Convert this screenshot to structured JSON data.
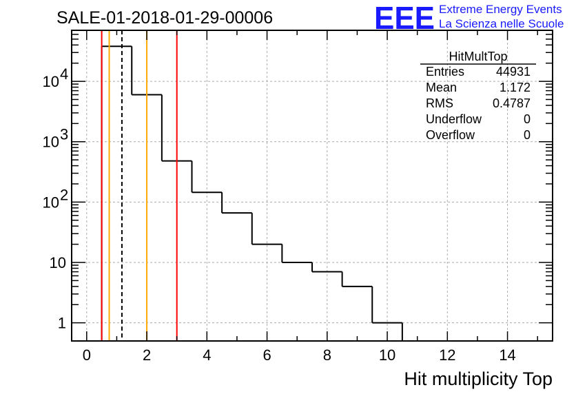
{
  "chart_data": {
    "type": "bar",
    "title": "SALE-01-2018-01-29-00006",
    "xlabel": "Hit multiplicity Top",
    "ylabel": "",
    "yscale": "log",
    "xlim": [
      -0.5,
      15.5
    ],
    "ylim": [
      0.5,
      70000
    ],
    "grid": true,
    "bin_edges": [
      0.5,
      1.5,
      2.5,
      3.5,
      4.5,
      5.5,
      6.5,
      7.5,
      8.5,
      9.5,
      10.5
    ],
    "values": [
      38000,
      6000,
      480,
      145,
      66,
      20,
      10,
      7,
      4,
      1
    ],
    "x_ticks": [
      0,
      2,
      4,
      6,
      8,
      10,
      12,
      14
    ],
    "x_tick_labels": [
      "0",
      "2",
      "4",
      "6",
      "8",
      "10",
      "12",
      "14"
    ],
    "y_ticks": [
      1,
      10,
      100,
      1000,
      10000
    ],
    "y_tick_labels": [
      {
        "base": "1",
        "exp": ""
      },
      {
        "base": "10",
        "exp": ""
      },
      {
        "base": "10",
        "exp": "2"
      },
      {
        "base": "10",
        "exp": "3"
      },
      {
        "base": "10",
        "exp": "4"
      }
    ],
    "vertical_lines": [
      {
        "x": 0.5,
        "color": "#ff0000",
        "style": "solid"
      },
      {
        "x": 0.75,
        "color": "#ffaa00",
        "style": "solid"
      },
      {
        "x": 1.172,
        "color": "#000000",
        "style": "dashed"
      },
      {
        "x": 2.0,
        "color": "#ffaa00",
        "style": "solid"
      },
      {
        "x": 3.0,
        "color": "#ff0000",
        "style": "solid"
      }
    ],
    "stats": {
      "name": "HitMultTop",
      "rows": [
        {
          "label": "Entries",
          "value": "44931"
        },
        {
          "label": "Mean",
          "value": "1.172"
        },
        {
          "label": "RMS",
          "value": "0.4787"
        },
        {
          "label": "Underflow",
          "value": "0"
        },
        {
          "label": "Overflow",
          "value": "0"
        }
      ]
    }
  },
  "logo": {
    "mark": "EEE",
    "line1": "Extreme Energy Events",
    "line2": "La Scienza nelle Scuole",
    "color": "#1a1aff"
  }
}
